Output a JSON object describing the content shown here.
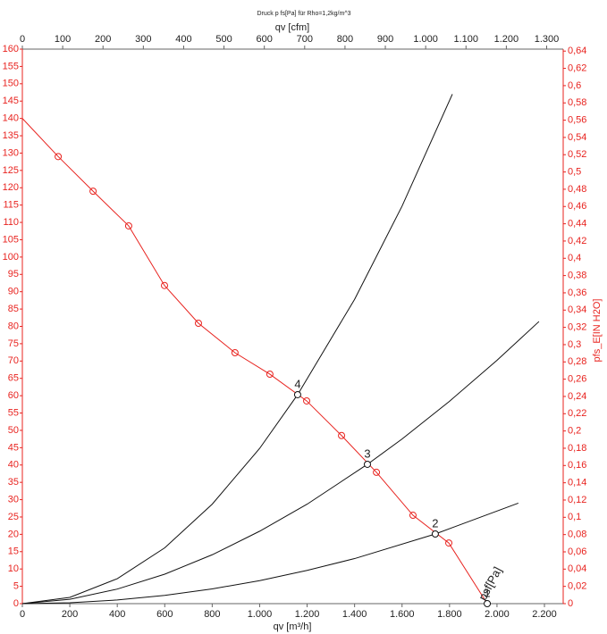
{
  "chart_data": {
    "type": "line",
    "title": "Druck p fs[Pa] für Rho=1,2kg/m^3",
    "xlabel": "qv [m³/h]",
    "x2label": "qv [cfm]",
    "y2label": "pfs_E[IN H2O]",
    "xlim": [
      0,
      2279
    ],
    "x2lim": [
      0,
      1341
    ],
    "ylim": [
      0,
      160
    ],
    "y2lim": [
      0,
      0.6423
    ],
    "xticks": [
      0,
      200,
      400,
      600,
      800,
      {
        "value": 1000,
        "label": "1.000"
      },
      {
        "value": 1200,
        "label": "1.200"
      },
      {
        "value": 1400,
        "label": "1.400"
      },
      {
        "value": 1600,
        "label": "1.600"
      },
      {
        "value": 1800,
        "label": "1.800"
      },
      {
        "value": 2000,
        "label": "2.000"
      },
      {
        "value": 2200,
        "label": "2.200"
      }
    ],
    "x2ticks": [
      0,
      100,
      200,
      300,
      400,
      500,
      600,
      700,
      800,
      900,
      {
        "value": 1000,
        "label": "1.000"
      },
      {
        "value": 1100,
        "label": "1.100"
      },
      {
        "value": 1200,
        "label": "1.200"
      },
      {
        "value": 1300,
        "label": "1.300"
      }
    ],
    "yticks": [
      0,
      5,
      10,
      15,
      20,
      25,
      30,
      35,
      40,
      45,
      50,
      55,
      60,
      65,
      70,
      75,
      80,
      85,
      90,
      95,
      100,
      105,
      110,
      115,
      120,
      125,
      130,
      135,
      140,
      145,
      150,
      155,
      160
    ],
    "y2ticks": [
      0,
      {
        "value": 0.02,
        "label": "0,02"
      },
      {
        "value": 0.04,
        "label": "0,04"
      },
      {
        "value": 0.06,
        "label": "0,06"
      },
      {
        "value": 0.08,
        "label": "0,08"
      },
      {
        "value": 0.1,
        "label": "0,1"
      },
      {
        "value": 0.12,
        "label": "0,12"
      },
      {
        "value": 0.14,
        "label": "0,14"
      },
      {
        "value": 0.16,
        "label": "0,16"
      },
      {
        "value": 0.18,
        "label": "0,18"
      },
      {
        "value": 0.2,
        "label": "0,2"
      },
      {
        "value": 0.22,
        "label": "0,22"
      },
      {
        "value": 0.24,
        "label": "0,24"
      },
      {
        "value": 0.26,
        "label": "0,26"
      },
      {
        "value": 0.28,
        "label": "0,28"
      },
      {
        "value": 0.3,
        "label": "0,3"
      },
      {
        "value": 0.32,
        "label": "0,32"
      },
      {
        "value": 0.34,
        "label": "0,34"
      },
      {
        "value": 0.36,
        "label": "0,36"
      },
      {
        "value": 0.38,
        "label": "0,38"
      },
      {
        "value": 0.4,
        "label": "0,4"
      },
      {
        "value": 0.42,
        "label": "0,42"
      },
      {
        "value": 0.44,
        "label": "0,44"
      },
      {
        "value": 0.46,
        "label": "0,46"
      },
      {
        "value": 0.48,
        "label": "0,48"
      },
      {
        "value": 0.5,
        "label": "0,5"
      },
      {
        "value": 0.52,
        "label": "0,52"
      },
      {
        "value": 0.54,
        "label": "0,54"
      },
      {
        "value": 0.56,
        "label": "0,56"
      },
      {
        "value": 0.58,
        "label": "0,58"
      },
      {
        "value": 0.6,
        "label": "0,6"
      },
      {
        "value": 0.62,
        "label": "0,62"
      },
      {
        "value": 0.64,
        "label": "0,64"
      }
    ],
    "series": [
      {
        "name": "psf[Pa]",
        "color": "#e8231f",
        "markers": true,
        "x": [
          0,
          151,
          298,
          448,
          599,
          742,
          896,
          1043,
          1198,
          1345,
          1492,
          1646,
          1797,
          1959
        ],
        "values": [
          140,
          129,
          119,
          109,
          91.8,
          80.9,
          72.4,
          66.2,
          58.5,
          48.5,
          37.9,
          25.5,
          17.5,
          0
        ]
      },
      {
        "color": "#111111",
        "x": [
          0,
          200,
          400,
          600,
          800,
          1000,
          1160,
          1400,
          1600,
          1812
        ],
        "values": [
          0,
          1.8,
          7.2,
          16.1,
          28.7,
          44.8,
          60.3,
          87.8,
          114.7,
          147
        ]
      },
      {
        "color": "#111111",
        "x": [
          0,
          200,
          400,
          600,
          800,
          1000,
          1200,
          1454,
          1600,
          1800,
          2000,
          2177
        ],
        "values": [
          0,
          1.25,
          4.2,
          8.5,
          14.1,
          20.9,
          28.7,
          40.2,
          47.5,
          58.4,
          70.2,
          81.4
        ]
      },
      {
        "color": "#111111",
        "x": [
          0,
          200,
          400,
          600,
          800,
          1000,
          1200,
          1400,
          1740,
          2090
        ],
        "values": [
          0,
          0.27,
          1.06,
          2.39,
          4.25,
          6.64,
          9.6,
          13.0,
          20.1,
          29
        ]
      }
    ],
    "operating_points": {
      "labels": [
        "1",
        "2",
        "3",
        "4"
      ],
      "x": [
        1959,
        1740,
        1454,
        1160
      ],
      "values": [
        0,
        20.1,
        40.2,
        60.3
      ]
    }
  }
}
